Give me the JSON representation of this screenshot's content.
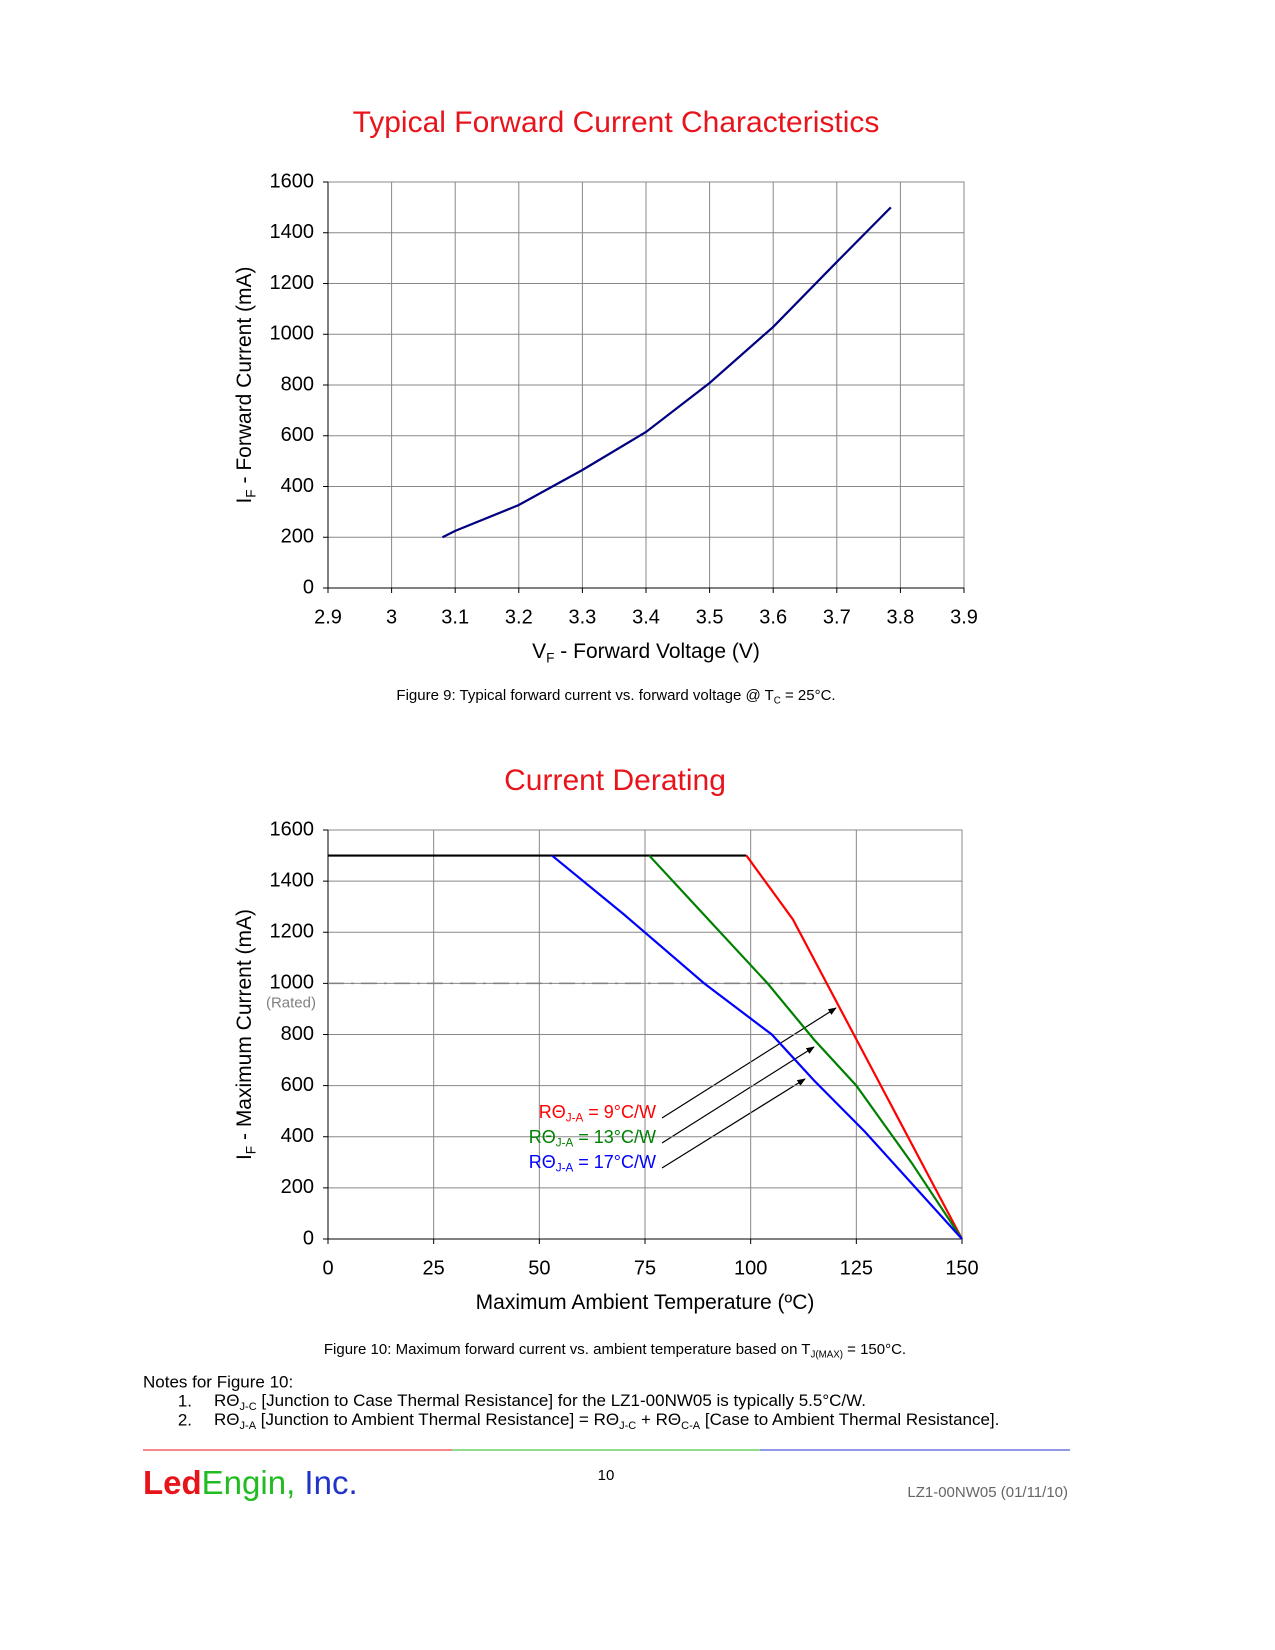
{
  "chart_data": [
    {
      "type": "line",
      "title": "Typical Forward Current Characteristics",
      "title_color": "#e8141c",
      "x_label_parts": [
        "V",
        "F",
        " - Forward Voltage (V)"
      ],
      "y_label_parts": [
        "I",
        "F",
        " - Forward Current (mA)"
      ],
      "series": [
        {
          "color": "#000080",
          "x": [
            3.08,
            3.1,
            3.2,
            3.3,
            3.4,
            3.5,
            3.6,
            3.7,
            3.785
          ],
          "values": [
            200,
            225,
            327,
            465,
            615,
            808,
            1029,
            1285,
            1500
          ]
        }
      ],
      "xlim": [
        2.9,
        3.9
      ],
      "xticks": [
        2.9,
        3,
        3.1,
        3.2,
        3.3,
        3.4,
        3.5,
        3.6,
        3.7,
        3.8,
        3.9
      ],
      "ylim": [
        0,
        1600
      ],
      "yticks": [
        0,
        200,
        400,
        600,
        800,
        1000,
        1200,
        1400,
        1600
      ],
      "grid": true,
      "caption_parts": [
        "Figure 9:  Typical forward current vs. forward voltage @ T",
        "C",
        " = 25°C."
      ]
    },
    {
      "type": "line",
      "title": "Current Derating",
      "title_color": "#e8141c",
      "x_label_parts": [
        "Maximum Ambient Temperature (ºC)"
      ],
      "y_label_parts": [
        "I",
        "F",
        " - Maximum Current (mA)"
      ],
      "series": [
        {
          "color": "#000000",
          "x": [
            0,
            99
          ],
          "values": [
            1500,
            1500
          ]
        },
        {
          "color": "#ff0000",
          "label_parts": [
            "RΘ",
            "J-A",
            " =   9°C/W"
          ],
          "x": [
            99,
            110,
            118,
            126,
            134,
            142,
            150
          ],
          "values": [
            1500,
            1250,
            1000,
            750,
            500,
            250,
            0
          ]
        },
        {
          "color": "#008000",
          "label_parts": [
            "RΘ",
            "J-A",
            " = 13°C/W"
          ],
          "x": [
            76,
            90,
            104,
            115,
            125,
            138,
            150
          ],
          "values": [
            1500,
            1250,
            1000,
            780,
            600,
            300,
            0
          ]
        },
        {
          "color": "#0000ff",
          "label_parts": [
            "RΘ",
            "J-A",
            " = 17°C/W"
          ],
          "x": [
            53,
            70,
            89,
            105,
            115,
            127,
            150
          ],
          "values": [
            1500,
            1270,
            1000,
            800,
            620,
            420,
            0
          ]
        }
      ],
      "reference_line": {
        "value": 1000,
        "label": "(Rated)",
        "x_end": 118,
        "color": "#808080"
      },
      "xlim": [
        0,
        150
      ],
      "xticks": [
        0,
        25,
        50,
        75,
        100,
        125,
        150
      ],
      "ylim": [
        0,
        1600
      ],
      "yticks": [
        0,
        200,
        400,
        600,
        800,
        1000,
        1200,
        1400,
        1600
      ],
      "grid": true,
      "caption_parts": [
        "Figure 10:  Maximum forward current vs. ambient temperature based on T",
        "J(MAX)",
        " = 150°C."
      ]
    }
  ],
  "notes": {
    "heading": "Notes for Figure 10:",
    "items": [
      {
        "number": "1.",
        "parts": [
          "RΘ",
          "J-C",
          " [Junction to Case Thermal Resistance] for the LZ1-00NW05 is typically 5.5°C/W."
        ]
      },
      {
        "number": "2.",
        "parts": [
          "RΘ",
          "J-A",
          " [Junction to Ambient Thermal Resistance] = RΘ",
          "J-C",
          " + RΘ",
          "C-A",
          " [Case to Ambient Thermal Resistance]."
        ]
      }
    ]
  },
  "footer": {
    "logo_parts": [
      "Led",
      "Engin,",
      " Inc."
    ],
    "page": "10",
    "doc_id": "LZ1-00NW05 (01/11/10)"
  }
}
